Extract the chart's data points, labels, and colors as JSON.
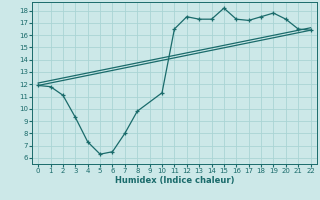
{
  "title": "",
  "xlabel": "Humidex (Indice chaleur)",
  "ylabel": "",
  "bg_color": "#cce8e8",
  "line_color": "#1a6b6b",
  "grid_color": "#aad4d4",
  "xlim": [
    -0.5,
    22.5
  ],
  "ylim": [
    5.5,
    18.7
  ],
  "xticks": [
    0,
    1,
    2,
    3,
    4,
    5,
    6,
    7,
    8,
    9,
    10,
    11,
    12,
    13,
    14,
    15,
    16,
    17,
    18,
    19,
    20,
    21,
    22
  ],
  "yticks": [
    6,
    7,
    8,
    9,
    10,
    11,
    12,
    13,
    14,
    15,
    16,
    17,
    18
  ],
  "line1_x": [
    0,
    1,
    2,
    3,
    4,
    5,
    6,
    7,
    8,
    10,
    11,
    12,
    13,
    14,
    15,
    16,
    17,
    18,
    19,
    20,
    21,
    22
  ],
  "line1_y": [
    11.9,
    11.8,
    11.1,
    9.3,
    7.3,
    6.3,
    6.5,
    8.0,
    9.8,
    11.3,
    16.5,
    17.5,
    17.3,
    17.3,
    18.2,
    17.3,
    17.2,
    17.5,
    17.8,
    17.3,
    16.5,
    16.4
  ],
  "line2_x": [
    0,
    22
  ],
  "line2_y": [
    11.9,
    16.4
  ],
  "line3_x": [
    0,
    22
  ],
  "line3_y": [
    12.1,
    16.6
  ]
}
